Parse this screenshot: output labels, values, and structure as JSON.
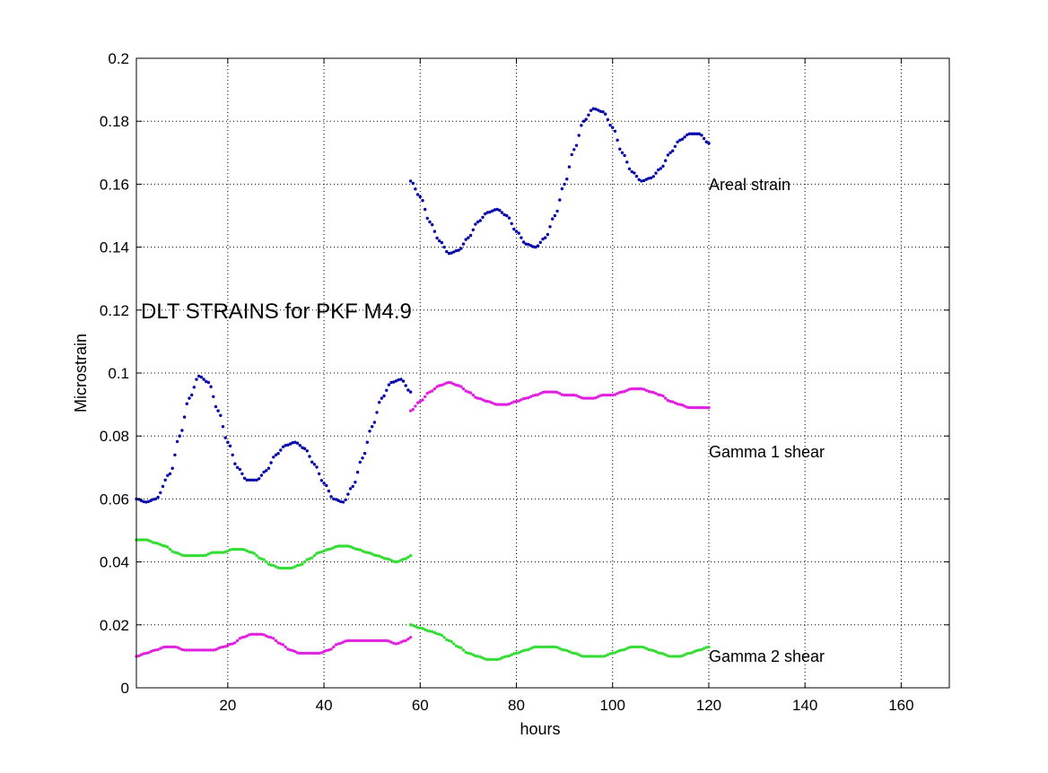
{
  "chart_data": {
    "type": "scatter",
    "title": "DLT STRAINS for PKF M4.9",
    "xlabel": "hours",
    "ylabel": "Microstrain",
    "xlim": [
      1,
      170
    ],
    "ylim": [
      0,
      0.2
    ],
    "x_ticks": [
      20,
      40,
      60,
      80,
      100,
      120,
      140,
      160
    ],
    "y_ticks": [
      0,
      0.02,
      0.04,
      0.06,
      0.08,
      0.1,
      0.12,
      0.14,
      0.16,
      0.18,
      0.2
    ],
    "grid": true,
    "annotations": {
      "areal": "Areal  strain",
      "gamma1": "Gamma 1  shear",
      "gamma2": "Gamma 2  shear"
    },
    "series": [
      {
        "color": "#0000aa",
        "points": [
          [
            1,
            0.06
          ],
          [
            3,
            0.059
          ],
          [
            5,
            0.06
          ],
          [
            8,
            0.068
          ],
          [
            10,
            0.08
          ],
          [
            12,
            0.092
          ],
          [
            14,
            0.099
          ],
          [
            16,
            0.097
          ],
          [
            18,
            0.088
          ],
          [
            20,
            0.078
          ],
          [
            22,
            0.07
          ],
          [
            24,
            0.066
          ],
          [
            26,
            0.066
          ],
          [
            28,
            0.069
          ],
          [
            30,
            0.074
          ],
          [
            32,
            0.077
          ],
          [
            34,
            0.078
          ],
          [
            36,
            0.076
          ],
          [
            38,
            0.071
          ],
          [
            40,
            0.065
          ],
          [
            42,
            0.06
          ],
          [
            44,
            0.059
          ],
          [
            46,
            0.064
          ],
          [
            48,
            0.073
          ],
          [
            50,
            0.083
          ],
          [
            52,
            0.092
          ],
          [
            54,
            0.097
          ],
          [
            56,
            0.098
          ],
          [
            58,
            0.094
          ]
        ]
      },
      {
        "color": "#0000aa",
        "points": [
          [
            58,
            0.161
          ],
          [
            60,
            0.156
          ],
          [
            62,
            0.148
          ],
          [
            64,
            0.142
          ],
          [
            66,
            0.138
          ],
          [
            68,
            0.139
          ],
          [
            70,
            0.143
          ],
          [
            72,
            0.148
          ],
          [
            74,
            0.151
          ],
          [
            76,
            0.152
          ],
          [
            78,
            0.15
          ],
          [
            80,
            0.145
          ],
          [
            82,
            0.141
          ],
          [
            84,
            0.14
          ],
          [
            86,
            0.143
          ],
          [
            88,
            0.15
          ],
          [
            90,
            0.16
          ],
          [
            92,
            0.171
          ],
          [
            94,
            0.18
          ],
          [
            96,
            0.184
          ],
          [
            98,
            0.183
          ],
          [
            100,
            0.178
          ],
          [
            102,
            0.17
          ],
          [
            104,
            0.164
          ],
          [
            106,
            0.161
          ],
          [
            108,
            0.162
          ],
          [
            110,
            0.165
          ],
          [
            112,
            0.17
          ],
          [
            114,
            0.174
          ],
          [
            116,
            0.176
          ],
          [
            118,
            0.176
          ],
          [
            120,
            0.173
          ]
        ]
      },
      {
        "color": "#e020e0",
        "points": [
          [
            58,
            0.088
          ],
          [
            60,
            0.091
          ],
          [
            62,
            0.094
          ],
          [
            64,
            0.096
          ],
          [
            66,
            0.097
          ],
          [
            68,
            0.096
          ],
          [
            70,
            0.094
          ],
          [
            72,
            0.092
          ],
          [
            74,
            0.091
          ],
          [
            76,
            0.09
          ],
          [
            78,
            0.09
          ],
          [
            80,
            0.091
          ],
          [
            82,
            0.092
          ],
          [
            84,
            0.093
          ],
          [
            86,
            0.094
          ],
          [
            88,
            0.094
          ],
          [
            90,
            0.093
          ],
          [
            92,
            0.093
          ],
          [
            94,
            0.092
          ],
          [
            96,
            0.092
          ],
          [
            98,
            0.093
          ],
          [
            100,
            0.093
          ],
          [
            102,
            0.094
          ],
          [
            104,
            0.095
          ],
          [
            106,
            0.095
          ],
          [
            108,
            0.094
          ],
          [
            110,
            0.093
          ],
          [
            112,
            0.091
          ],
          [
            114,
            0.09
          ],
          [
            116,
            0.089
          ],
          [
            118,
            0.089
          ],
          [
            120,
            0.089
          ]
        ]
      },
      {
        "color": "#33dd33",
        "points": [
          [
            1,
            0.047
          ],
          [
            3,
            0.047
          ],
          [
            5,
            0.046
          ],
          [
            7,
            0.045
          ],
          [
            9,
            0.043
          ],
          [
            11,
            0.042
          ],
          [
            13,
            0.042
          ],
          [
            15,
            0.042
          ],
          [
            17,
            0.043
          ],
          [
            19,
            0.043
          ],
          [
            21,
            0.044
          ],
          [
            23,
            0.044
          ],
          [
            25,
            0.043
          ],
          [
            27,
            0.041
          ],
          [
            29,
            0.039
          ],
          [
            31,
            0.038
          ],
          [
            33,
            0.038
          ],
          [
            35,
            0.039
          ],
          [
            37,
            0.041
          ],
          [
            39,
            0.043
          ],
          [
            41,
            0.044
          ],
          [
            43,
            0.045
          ],
          [
            45,
            0.045
          ],
          [
            47,
            0.044
          ],
          [
            49,
            0.043
          ],
          [
            51,
            0.042
          ],
          [
            53,
            0.041
          ],
          [
            55,
            0.04
          ],
          [
            57,
            0.041
          ],
          [
            58,
            0.042
          ]
        ]
      },
      {
        "color": "#e020e0",
        "points": [
          [
            1,
            0.01
          ],
          [
            3,
            0.011
          ],
          [
            5,
            0.012
          ],
          [
            7,
            0.013
          ],
          [
            9,
            0.013
          ],
          [
            11,
            0.012
          ],
          [
            13,
            0.012
          ],
          [
            15,
            0.012
          ],
          [
            17,
            0.012
          ],
          [
            19,
            0.013
          ],
          [
            21,
            0.014
          ],
          [
            23,
            0.016
          ],
          [
            25,
            0.017
          ],
          [
            27,
            0.017
          ],
          [
            29,
            0.016
          ],
          [
            31,
            0.014
          ],
          [
            33,
            0.012
          ],
          [
            35,
            0.011
          ],
          [
            37,
            0.011
          ],
          [
            39,
            0.011
          ],
          [
            41,
            0.012
          ],
          [
            43,
            0.014
          ],
          [
            45,
            0.015
          ],
          [
            47,
            0.015
          ],
          [
            49,
            0.015
          ],
          [
            51,
            0.015
          ],
          [
            53,
            0.015
          ],
          [
            55,
            0.014
          ],
          [
            57,
            0.015
          ],
          [
            58,
            0.016
          ]
        ]
      },
      {
        "color": "#33dd33",
        "points": [
          [
            58,
            0.02
          ],
          [
            60,
            0.019
          ],
          [
            62,
            0.018
          ],
          [
            64,
            0.017
          ],
          [
            66,
            0.015
          ],
          [
            68,
            0.013
          ],
          [
            70,
            0.011
          ],
          [
            72,
            0.01
          ],
          [
            74,
            0.009
          ],
          [
            76,
            0.009
          ],
          [
            78,
            0.01
          ],
          [
            80,
            0.011
          ],
          [
            82,
            0.012
          ],
          [
            84,
            0.013
          ],
          [
            86,
            0.013
          ],
          [
            88,
            0.013
          ],
          [
            90,
            0.012
          ],
          [
            92,
            0.011
          ],
          [
            94,
            0.01
          ],
          [
            96,
            0.01
          ],
          [
            98,
            0.01
          ],
          [
            100,
            0.011
          ],
          [
            102,
            0.012
          ],
          [
            104,
            0.013
          ],
          [
            106,
            0.013
          ],
          [
            108,
            0.012
          ],
          [
            110,
            0.011
          ],
          [
            112,
            0.01
          ],
          [
            114,
            0.01
          ],
          [
            116,
            0.011
          ],
          [
            118,
            0.012
          ],
          [
            120,
            0.013
          ]
        ]
      }
    ]
  }
}
